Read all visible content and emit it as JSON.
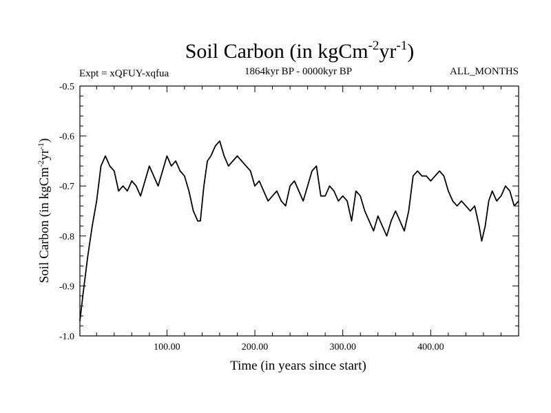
{
  "chart_data": {
    "type": "line",
    "title": "Soil Carbon (in kgCm",
    "title_sup1": "-2",
    "title_mid": "yr",
    "title_sup2": "-1",
    "title_end": ")",
    "subtitle_left": "Expt = xQFUY-xqfua",
    "subtitle_center": "1864kyr BP - 0000kyr BP",
    "subtitle_right": "ALL_MONTHS",
    "xlabel": "Time (in years since start)",
    "ylabel": "Soil Carbon (in kgCm",
    "ylabel_sup1": "-2",
    "ylabel_mid": "yr",
    "ylabel_sup2": "-1",
    "ylabel_end": ")",
    "xlim": [
      1,
      500
    ],
    "ylim": [
      -1.0,
      -0.5
    ],
    "xticks": [
      100,
      200,
      300,
      400
    ],
    "xtick_labels": [
      "100.00",
      "200.00",
      "300.00",
      "400.00"
    ],
    "yticks": [
      -1.0,
      -0.9,
      -0.8,
      -0.7,
      -0.6,
      -0.5
    ],
    "ytick_labels": [
      "-1.0",
      "-0.9",
      "-0.8",
      "-0.7",
      "-0.6",
      "-0.5"
    ],
    "series": [
      {
        "name": "Soil Carbon",
        "color": "#000000",
        "x": [
          1,
          5,
          10,
          15,
          20,
          25,
          30,
          35,
          40,
          45,
          50,
          55,
          60,
          65,
          70,
          75,
          80,
          85,
          90,
          95,
          100,
          105,
          110,
          115,
          120,
          125,
          130,
          135,
          138,
          142,
          146,
          150,
          155,
          160,
          165,
          170,
          175,
          180,
          185,
          190,
          195,
          200,
          205,
          210,
          215,
          220,
          225,
          230,
          235,
          240,
          245,
          250,
          255,
          260,
          265,
          270,
          275,
          280,
          285,
          290,
          295,
          300,
          305,
          310,
          315,
          320,
          325,
          330,
          335,
          340,
          345,
          350,
          355,
          360,
          365,
          370,
          375,
          380,
          385,
          390,
          395,
          400,
          405,
          410,
          415,
          420,
          425,
          430,
          435,
          440,
          445,
          450,
          455,
          458,
          462,
          466,
          470,
          475,
          480,
          485,
          490,
          495,
          500
        ],
        "values": [
          -0.97,
          -0.91,
          -0.84,
          -0.78,
          -0.73,
          -0.66,
          -0.64,
          -0.66,
          -0.67,
          -0.71,
          -0.7,
          -0.71,
          -0.69,
          -0.7,
          -0.72,
          -0.69,
          -0.66,
          -0.68,
          -0.7,
          -0.67,
          -0.64,
          -0.66,
          -0.65,
          -0.67,
          -0.68,
          -0.71,
          -0.75,
          -0.77,
          -0.77,
          -0.7,
          -0.65,
          -0.64,
          -0.62,
          -0.61,
          -0.64,
          -0.66,
          -0.65,
          -0.64,
          -0.65,
          -0.66,
          -0.67,
          -0.7,
          -0.69,
          -0.71,
          -0.73,
          -0.72,
          -0.71,
          -0.73,
          -0.74,
          -0.7,
          -0.69,
          -0.71,
          -0.73,
          -0.7,
          -0.67,
          -0.66,
          -0.72,
          -0.72,
          -0.7,
          -0.71,
          -0.73,
          -0.72,
          -0.73,
          -0.77,
          -0.71,
          -0.72,
          -0.75,
          -0.77,
          -0.79,
          -0.76,
          -0.78,
          -0.8,
          -0.77,
          -0.75,
          -0.77,
          -0.79,
          -0.75,
          -0.68,
          -0.67,
          -0.68,
          -0.68,
          -0.69,
          -0.68,
          -0.67,
          -0.68,
          -0.71,
          -0.73,
          -0.74,
          -0.73,
          -0.74,
          -0.75,
          -0.74,
          -0.78,
          -0.81,
          -0.78,
          -0.73,
          -0.71,
          -0.73,
          -0.72,
          -0.7,
          -0.71,
          -0.74,
          -0.73
        ]
      }
    ]
  }
}
